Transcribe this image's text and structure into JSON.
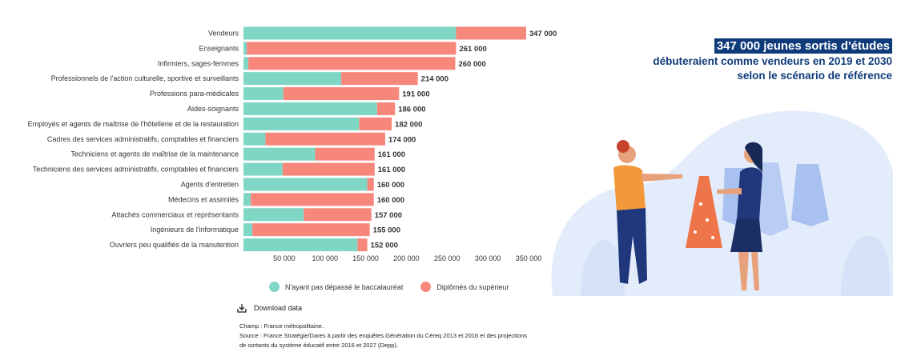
{
  "chart_data": {
    "type": "bar",
    "orientation": "horizontal",
    "stacked": true,
    "categories": [
      "Vendeurs",
      "Enseignants",
      "Infirmiers, sages-femmes",
      "Professionnels de l'action culturelle, sportive et surveillants",
      "Professions para-médicales",
      "Aides-soignants",
      "Employés et agents de maîtrise de l'hôtellerie et de la restauration",
      "Cadres des services administratifs, comptables et financiers",
      "Techniciens et agents de maîtrise de la maintenance",
      "Techniciens des services administratifs, comptables et financiers",
      "Agents d'entretien",
      "Médecins et assimilés",
      "Attachés commerciaux et représentants",
      "Ingénieurs de l'informatique",
      "Ouvriers peu qualifiés de  la manutention"
    ],
    "series": [
      {
        "name": "N'ayant pas dépassé le baccalauréat",
        "color": "#7fd6c5",
        "values": [
          261000,
          4000,
          6000,
          120000,
          49000,
          164000,
          142000,
          27000,
          88000,
          48000,
          152000,
          9000,
          74000,
          11000,
          140000
        ]
      },
      {
        "name": "Diplômés du supérieur",
        "color": "#f7877a",
        "values": [
          86000,
          257000,
          254000,
          94000,
          142000,
          22000,
          40000,
          147000,
          73000,
          113000,
          8000,
          151000,
          83000,
          144000,
          12000
        ]
      }
    ],
    "totals_labels": [
      "347 000",
      "261 000",
      "260 000",
      "214 000",
      "191 000",
      "186 000",
      "182 000",
      "174 000",
      "161 000",
      "161 000",
      "160 000",
      "160 000",
      "157 000",
      "155 000",
      "152 000"
    ],
    "xlim": [
      0,
      360000
    ],
    "xticks": [
      50000,
      100000,
      150000,
      200000,
      250000,
      300000,
      350000
    ],
    "xtick_labels": [
      "50 000",
      "100 000",
      "150 000",
      "200 000",
      "250 000",
      "300 000",
      "350 000"
    ],
    "grid": false,
    "legend_position": "bottom"
  },
  "download_label": "Download data",
  "notes": {
    "champ": "Champ : France métropolitaine.",
    "source": "Source : France Stratégie/Dares à partir des enquêtes Génération du Céreq 2013 et 2016 et des projections de sortants du système éducatif entre 2016 et 2027 (Depp)."
  },
  "headline": {
    "main": "347 000 jeunes sortis d'études",
    "line2": "débuteraient comme vendeurs en 2019 et 2030",
    "line3": "selon le scénario de référence"
  },
  "colors": {
    "accent": "#0f3b7a",
    "teal": "#7fd6c5",
    "salmon": "#f7877a"
  },
  "icons": {
    "download": "download-icon",
    "illustration": "clothing-shop-illustration"
  }
}
